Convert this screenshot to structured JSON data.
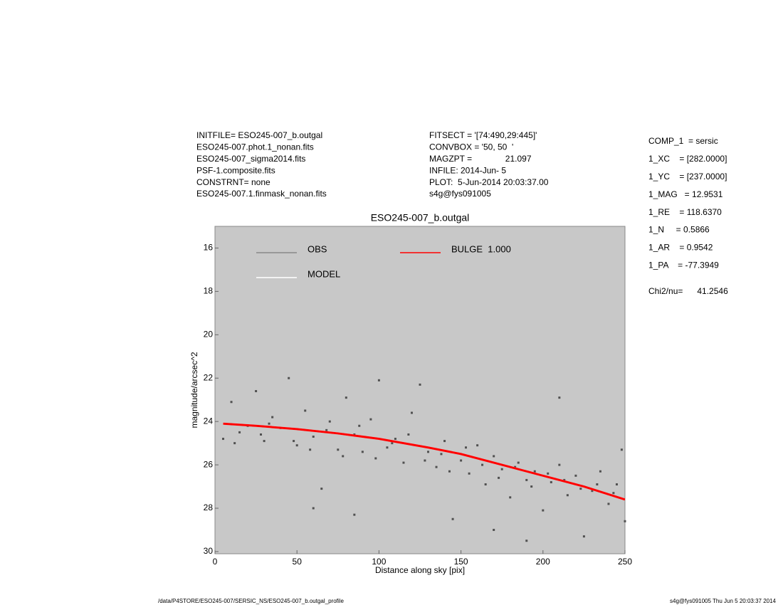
{
  "info_left": [
    "INITFILE= ESO245-007_b.outgal",
    "ESO245-007.phot.1_nonan.fits",
    "ESO245-007_sigma2014.fits",
    "PSF-1.composite.fits",
    "CONSTRNT= none",
    "ESO245-007.1.finmask_nonan.fits"
  ],
  "info_mid": [
    "FITSECT = '[74:490,29:445]'",
    "CONVBOX = '50, 50  '",
    "MAGZPT =              21.097",
    "INFILE: 2014-Jun- 5",
    "PLOT:  5-Jun-2014 20:03:37.00",
    "s4g@fys091005"
  ],
  "info_right": [
    "COMP_1  = sersic",
    "1_XC    = [282.0000]",
    "1_YC    = [237.0000]",
    "1_MAG   = 12.9531",
    "1_RE    = 118.6370",
    "1_N     = 0.5866",
    "1_AR    = 0.9542",
    "1_PA    = -77.3949",
    "Chi2/nu=      41.2546"
  ],
  "footer_left": "/data/P4STORE/ESO245-007/SERSIC_NS/ESO245-007_b.outgal_profile",
  "footer_right": "s4g@fys091005  Thu Jun  5 20:03:37 2014",
  "chart_data": {
    "type": "scatter",
    "title": "ESO245-007_b.outgal",
    "x_label": "Distance along sky [pix]",
    "y_label": "magnitude/arcsec^2",
    "xlim": [
      0,
      250
    ],
    "ylim": [
      30.1,
      15
    ],
    "xticks": [
      0,
      50,
      100,
      150,
      200,
      250
    ],
    "yticks": [
      16,
      18,
      20,
      22,
      24,
      26,
      28,
      30
    ],
    "background": "#c8c8c8",
    "series": [
      {
        "name": "OBS",
        "color": "#505050",
        "kind": "points",
        "x": [
          5,
          10,
          15,
          20,
          25,
          30,
          35,
          40,
          45,
          50,
          55,
          60,
          65,
          70,
          75,
          80,
          85,
          90,
          95,
          100,
          105,
          110,
          115,
          120,
          125,
          130,
          135,
          140,
          145,
          150,
          155,
          160,
          165,
          170,
          175,
          180,
          185,
          190,
          195,
          200,
          205,
          210,
          215,
          220,
          225,
          230,
          235,
          240,
          245,
          250,
          12,
          28,
          33,
          48,
          58,
          68,
          78,
          88,
          98,
          108,
          118,
          128,
          138,
          143,
          153,
          163,
          173,
          183,
          193,
          203,
          213,
          223,
          233,
          243,
          85,
          60,
          170,
          190,
          210,
          248
        ],
        "values": [
          24.8,
          23.1,
          24.5,
          24.2,
          22.6,
          24.9,
          23.8,
          24.3,
          22.0,
          25.1,
          23.5,
          24.7,
          27.1,
          24.0,
          25.3,
          22.9,
          24.6,
          25.4,
          23.9,
          22.1,
          25.2,
          24.8,
          25.9,
          23.6,
          22.3,
          25.4,
          26.1,
          24.9,
          28.5,
          25.8,
          26.4,
          25.1,
          26.9,
          25.6,
          26.2,
          27.5,
          25.9,
          26.7,
          26.3,
          28.1,
          26.8,
          26.0,
          27.4,
          26.5,
          29.3,
          27.2,
          26.3,
          27.8,
          26.9,
          28.6,
          25.0,
          24.6,
          24.1,
          24.9,
          25.3,
          24.4,
          25.6,
          24.2,
          25.7,
          25.0,
          24.6,
          25.8,
          25.5,
          26.3,
          25.2,
          26.0,
          26.6,
          26.1,
          27.0,
          26.4,
          26.7,
          27.1,
          26.9,
          27.3,
          28.3,
          28.0,
          29.0,
          29.5,
          22.9,
          25.3
        ]
      },
      {
        "name": "MODEL",
        "color": "#ffffff",
        "kind": "line",
        "x": [
          5,
          25,
          50,
          75,
          100,
          115,
          130,
          150,
          175,
          200,
          225,
          250
        ],
        "values": [
          24.1,
          24.2,
          24.35,
          24.55,
          24.8,
          25.0,
          25.2,
          25.5,
          26.0,
          26.5,
          27.0,
          27.6
        ]
      },
      {
        "name": "BULGE  1.000",
        "color": "#ff0000",
        "kind": "line",
        "x": [
          5,
          25,
          50,
          75,
          100,
          115,
          130,
          150,
          175,
          200,
          225,
          250
        ],
        "values": [
          24.1,
          24.2,
          24.35,
          24.55,
          24.8,
          25.0,
          25.2,
          25.5,
          26.0,
          26.5,
          27.0,
          27.6
        ]
      }
    ]
  }
}
